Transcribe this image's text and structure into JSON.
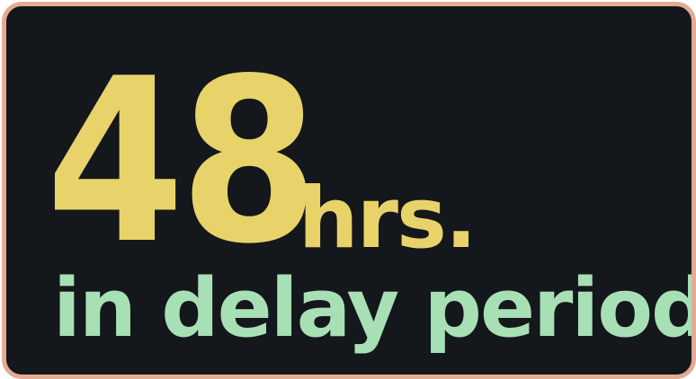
{
  "badge": {
    "number": "48",
    "unit": "hrs.",
    "subtitle": "in delay period"
  },
  "colors": {
    "background": "#14171b",
    "border": "#e3ab91",
    "number": "#e8d36a",
    "subtitle": "#a8e0b5"
  }
}
